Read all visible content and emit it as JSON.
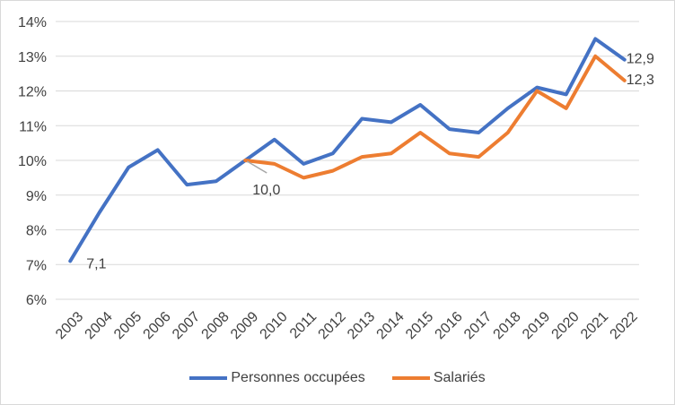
{
  "chart_data": {
    "type": "line",
    "title": "",
    "xlabel": "",
    "ylabel": "",
    "categories": [
      "2003",
      "2004",
      "2005",
      "2006",
      "2007",
      "2008",
      "2009",
      "2010",
      "2011",
      "2012",
      "2013",
      "2014",
      "2015",
      "2016",
      "2017",
      "2018",
      "2019",
      "2020",
      "2021",
      "2022"
    ],
    "ylim": [
      6,
      14
    ],
    "yticks": [
      "6%",
      "7%",
      "8%",
      "9%",
      "10%",
      "11%",
      "12%",
      "13%",
      "14%"
    ],
    "grid": "horizontal",
    "legend_position": "bottom",
    "series": [
      {
        "name": "Personnes occupées",
        "color": "#4472C4",
        "values": [
          7.1,
          8.5,
          9.8,
          10.3,
          9.3,
          9.4,
          10.0,
          10.6,
          9.9,
          10.2,
          11.2,
          11.1,
          11.6,
          10.9,
          10.8,
          11.5,
          12.1,
          11.9,
          13.5,
          12.9
        ]
      },
      {
        "name": "Salariés",
        "color": "#ED7D31",
        "values": [
          null,
          null,
          null,
          null,
          null,
          null,
          10.0,
          9.9,
          9.5,
          9.7,
          10.1,
          10.2,
          10.8,
          10.2,
          10.1,
          10.8,
          12.0,
          11.5,
          13.0,
          12.3
        ]
      }
    ],
    "annotations": [
      {
        "text": "7,1",
        "series": 0,
        "category": "2003"
      },
      {
        "text": "10,0",
        "series": 1,
        "category": "2009",
        "leader_line": true
      },
      {
        "text": "12,9",
        "series": 0,
        "category": "2022"
      },
      {
        "text": "12,3",
        "series": 1,
        "category": "2022"
      }
    ]
  }
}
